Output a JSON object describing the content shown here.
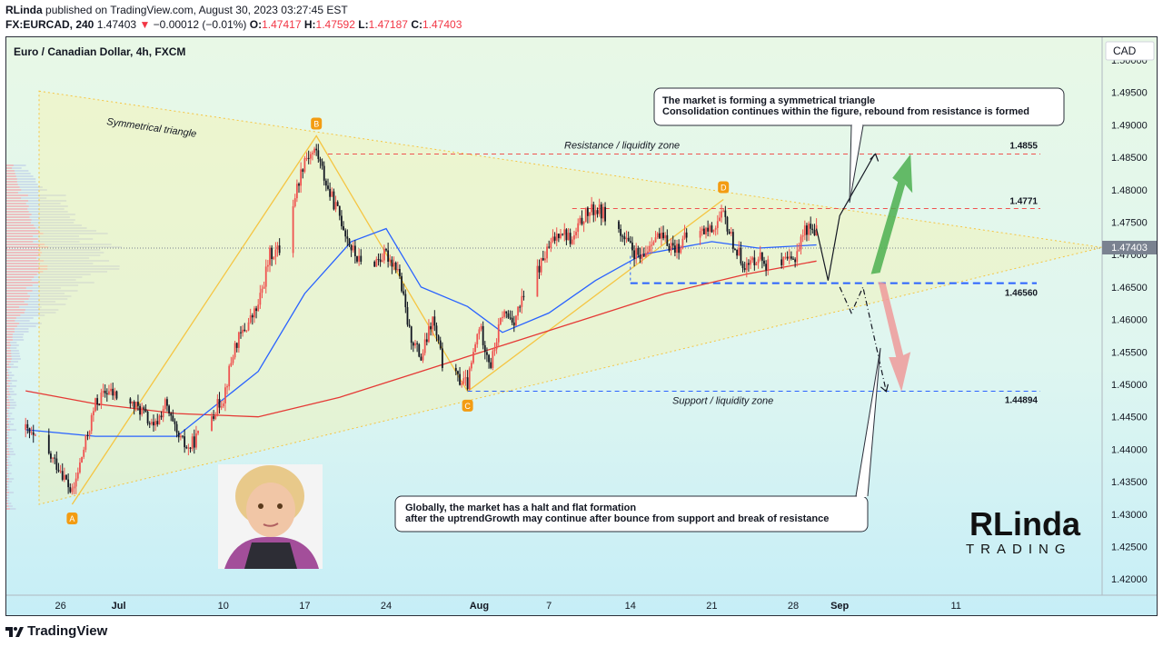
{
  "header": {
    "author": "RLinda",
    "published_text": "published on TradingView.com, August 30, 2023 03:27:45 EST",
    "symbol": "FX:EURCAD, 240",
    "last": "1.47403",
    "arrow": "▼",
    "change": "−0.00012 (−0.01%)",
    "o_label": "O:",
    "o": "1.47417",
    "h_label": "H:",
    "h": "1.47592",
    "l_label": "L:",
    "l": "1.47187",
    "c_label": "C:",
    "c": "1.47403"
  },
  "chart_title": "Euro / Canadian Dollar, 4h, FXCM",
  "currency_button": "CAD",
  "price_tag": "1.47403",
  "footer_brand": "TradingView",
  "watermark": {
    "line1": "RLinda",
    "line2": "TRADING"
  },
  "colors": {
    "up": "#26a69a",
    "down": "#ef5350",
    "candle_up": "#ef5350",
    "ma_fast": "#2962ff",
    "ma_slow": "#e53935",
    "triangle": "#f5c542"
  },
  "annotations": {
    "box_top_1": "The market is forming a symmetrical triangle",
    "box_top_2": "Consolidation continues within the figure, rebound from resistance is formed",
    "box_bottom_1": "Globally, the market has a halt and flat formation",
    "box_bottom_2": "after the uptrendGrowth may continue after bounce from support and break of resistance",
    "triangle_label": "Symmetrical triangle",
    "resistance_label": "Resistance / liquidity zone",
    "support_label": "Support / liquidity zone",
    "level_1": "1.4855",
    "level_2": "1.4771",
    "level_3": "1.46560",
    "level_4": "1.44894",
    "point_a": "A",
    "point_b": "B",
    "point_c": "C",
    "point_d": "D"
  },
  "chart_data": {
    "type": "candlestick",
    "title": "Euro / Canadian Dollar, 4h, FXCM",
    "y_ticks": [
      "1.50000",
      "1.49500",
      "1.49000",
      "1.48500",
      "1.48000",
      "1.47500",
      "1.47000",
      "1.46500",
      "1.46000",
      "1.45500",
      "1.45000",
      "1.44500",
      "1.44000",
      "1.43500",
      "1.43000",
      "1.42500",
      "1.42000"
    ],
    "x_ticks": [
      "26",
      "Jul",
      "10",
      "17",
      "24",
      "Aug",
      "7",
      "14",
      "21",
      "28",
      "Sep",
      "11"
    ],
    "ylim": [
      1.4175,
      1.5035
    ],
    "levels": {
      "resistance": 1.4855,
      "upper": 1.4771,
      "lower": 1.4656,
      "support": 1.44894
    },
    "swing_points": [
      {
        "label": "A",
        "date": "2023-06-27",
        "price": 1.4315
      },
      {
        "label": "B",
        "date": "2023-07-18",
        "price": 1.4883
      },
      {
        "label": "C",
        "date": "2023-07-31",
        "price": 1.4489
      },
      {
        "label": "D",
        "date": "2023-08-22",
        "price": 1.4785
      }
    ],
    "price_path": [
      [
        "2023-06-23",
        1.443
      ],
      [
        "2023-06-24",
        1.441
      ],
      [
        "2023-06-26",
        1.437
      ],
      [
        "2023-06-27",
        1.433
      ],
      [
        "2023-06-28",
        1.44
      ],
      [
        "2023-06-29",
        1.447
      ],
      [
        "2023-06-30",
        1.449
      ],
      [
        "2023-07-03",
        1.446
      ],
      [
        "2023-07-04",
        1.443
      ],
      [
        "2023-07-05",
        1.447
      ],
      [
        "2023-07-06",
        1.442
      ],
      [
        "2023-07-07",
        1.44
      ],
      [
        "2023-07-10",
        1.448
      ],
      [
        "2023-07-11",
        1.456
      ],
      [
        "2023-07-12",
        1.459
      ],
      [
        "2023-07-13",
        1.462
      ],
      [
        "2023-07-14",
        1.47
      ],
      [
        "2023-07-15",
        1.471
      ],
      [
        "2023-07-16",
        1.478
      ],
      [
        "2023-07-17",
        1.485
      ],
      [
        "2023-07-18",
        1.486
      ],
      [
        "2023-07-19",
        1.48
      ],
      [
        "2023-07-20",
        1.476
      ],
      [
        "2023-07-21",
        1.471
      ],
      [
        "2023-07-22",
        1.468
      ],
      [
        "2023-07-24",
        1.47
      ],
      [
        "2023-07-25",
        1.468
      ],
      [
        "2023-07-26",
        1.458
      ],
      [
        "2023-07-27",
        1.454
      ],
      [
        "2023-07-28",
        1.46
      ],
      [
        "2023-07-29",
        1.452
      ],
      [
        "2023-07-31",
        1.45
      ],
      [
        "2023-08-01",
        1.459
      ],
      [
        "2023-08-02",
        1.453
      ],
      [
        "2023-08-03",
        1.461
      ],
      [
        "2023-08-04",
        1.46
      ],
      [
        "2023-08-05",
        1.464
      ],
      [
        "2023-08-07",
        1.471
      ],
      [
        "2023-08-08",
        1.474
      ],
      [
        "2023-08-09",
        1.472
      ],
      [
        "2023-08-10",
        1.476
      ],
      [
        "2023-08-11",
        1.477
      ],
      [
        "2023-08-12",
        1.476
      ],
      [
        "2023-08-14",
        1.471
      ],
      [
        "2023-08-15",
        1.469
      ],
      [
        "2023-08-16",
        1.473
      ],
      [
        "2023-08-17",
        1.472
      ],
      [
        "2023-08-18",
        1.471
      ],
      [
        "2023-08-19",
        1.473
      ],
      [
        "2023-08-21",
        1.474
      ],
      [
        "2023-08-22",
        1.476
      ],
      [
        "2023-08-23",
        1.471
      ],
      [
        "2023-08-24",
        1.468
      ],
      [
        "2023-08-25",
        1.47
      ],
      [
        "2023-08-26",
        1.468
      ],
      [
        "2023-08-28",
        1.469
      ],
      [
        "2023-08-29",
        1.474
      ],
      [
        "2023-08-30",
        1.474
      ]
    ],
    "ma_fast_path": [
      [
        "2023-06-23",
        1.443
      ],
      [
        "2023-06-29",
        1.442
      ],
      [
        "2023-07-06",
        1.442
      ],
      [
        "2023-07-13",
        1.452
      ],
      [
        "2023-07-17",
        1.464
      ],
      [
        "2023-07-21",
        1.472
      ],
      [
        "2023-07-24",
        1.474
      ],
      [
        "2023-07-27",
        1.465
      ],
      [
        "2023-07-31",
        1.462
      ],
      [
        "2023-08-03",
        1.458
      ],
      [
        "2023-08-07",
        1.461
      ],
      [
        "2023-08-11",
        1.466
      ],
      [
        "2023-08-15",
        1.47
      ],
      [
        "2023-08-21",
        1.472
      ],
      [
        "2023-08-25",
        1.471
      ],
      [
        "2023-08-30",
        1.4715
      ]
    ],
    "ma_slow_path": [
      [
        "2023-06-23",
        1.449
      ],
      [
        "2023-06-29",
        1.447
      ],
      [
        "2023-07-06",
        1.4455
      ],
      [
        "2023-07-13",
        1.445
      ],
      [
        "2023-07-20",
        1.448
      ],
      [
        "2023-07-27",
        1.452
      ],
      [
        "2023-08-03",
        1.456
      ],
      [
        "2023-08-10",
        1.46
      ],
      [
        "2023-08-17",
        1.464
      ],
      [
        "2023-08-24",
        1.467
      ],
      [
        "2023-08-30",
        1.469
      ]
    ],
    "projection_up": [
      [
        "2023-08-30",
        1.474
      ],
      [
        "2023-08-31",
        1.466
      ],
      [
        "2023-09-01",
        1.476
      ],
      [
        "2023-09-04",
        1.4855
      ]
    ],
    "projection_down": [
      [
        "2023-09-01",
        1.465
      ],
      [
        "2023-09-02",
        1.461
      ],
      [
        "2023-09-03",
        1.465
      ],
      [
        "2023-09-05",
        1.4489
      ]
    ]
  }
}
